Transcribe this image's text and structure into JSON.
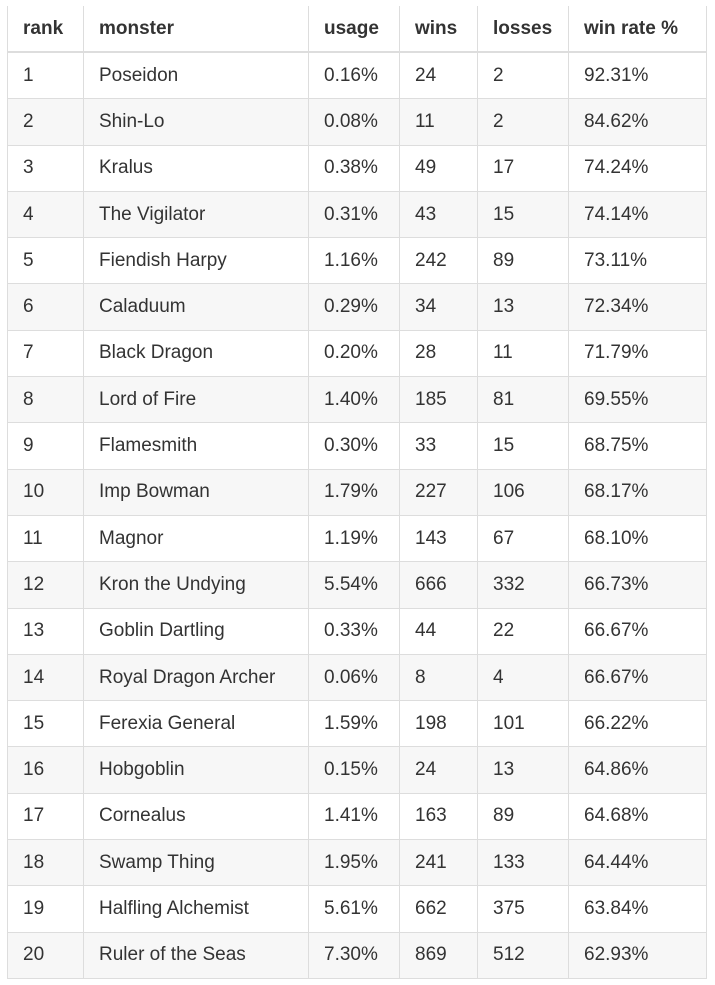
{
  "table": {
    "header": [
      "rank",
      "monster",
      "usage",
      "wins",
      "losses",
      "win rate %"
    ],
    "rows": [
      [
        "1",
        "Poseidon",
        "0.16%",
        "24",
        "2",
        "92.31%"
      ],
      [
        "2",
        "Shin-Lo",
        "0.08%",
        "11",
        "2",
        "84.62%"
      ],
      [
        "3",
        "Kralus",
        "0.38%",
        "49",
        "17",
        "74.24%"
      ],
      [
        "4",
        "The Vigilator",
        "0.31%",
        "43",
        "15",
        "74.14%"
      ],
      [
        "5",
        "Fiendish Harpy",
        "1.16%",
        "242",
        "89",
        "73.11%"
      ],
      [
        "6",
        "Caladuum",
        "0.29%",
        "34",
        "13",
        "72.34%"
      ],
      [
        "7",
        "Black Dragon",
        "0.20%",
        "28",
        "11",
        "71.79%"
      ],
      [
        "8",
        "Lord of Fire",
        "1.40%",
        "185",
        "81",
        "69.55%"
      ],
      [
        "9",
        "Flamesmith",
        "0.30%",
        "33",
        "15",
        "68.75%"
      ],
      [
        "10",
        "Imp Bowman",
        "1.79%",
        "227",
        "106",
        "68.17%"
      ],
      [
        "11",
        "Magnor",
        "1.19%",
        "143",
        "67",
        "68.10%"
      ],
      [
        "12",
        "Kron the Undying",
        "5.54%",
        "666",
        "332",
        "66.73%"
      ],
      [
        "13",
        "Goblin Dartling",
        "0.33%",
        "44",
        "22",
        "66.67%"
      ],
      [
        "14",
        "Royal Dragon Archer",
        "0.06%",
        "8",
        "4",
        "66.67%"
      ],
      [
        "15",
        "Ferexia General",
        "1.59%",
        "198",
        "101",
        "66.22%"
      ],
      [
        "16",
        "Hobgoblin",
        "0.15%",
        "24",
        "13",
        "64.86%"
      ],
      [
        "17",
        "Cornealus",
        "1.41%",
        "163",
        "89",
        "64.68%"
      ],
      [
        "18",
        "Swamp Thing",
        "1.95%",
        "241",
        "133",
        "64.44%"
      ],
      [
        "19",
        "Halfling Alchemist",
        "5.61%",
        "662",
        "375",
        "63.84%"
      ],
      [
        "20",
        "Ruler of the Seas",
        "7.30%",
        "869",
        "512",
        "62.93%"
      ]
    ]
  }
}
